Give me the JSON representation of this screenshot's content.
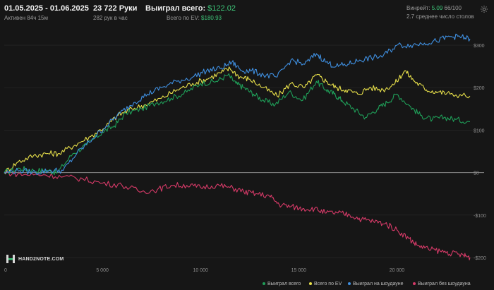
{
  "header": {
    "date_range": "01.05.2025 - 01.06.2025",
    "active_time": "Активен 84ч 15м",
    "hands": "23 722 Руки",
    "hands_per_hour": "282 рук в час",
    "won_total_label": "Выиграл всего:",
    "won_total_value": "$122.02",
    "ev_total_label": "Всего по EV:",
    "ev_total_value": "$180.93",
    "winrate_label": "Винрейт:",
    "winrate_value": "5.09",
    "winrate_count": "66/100",
    "avg_tables": "2.7 среднее число столов"
  },
  "icons": {
    "settings": "gear-icon",
    "logo": "hand2note-logo-icon"
  },
  "logo_text": "HAND2NOTE.COM",
  "legend": [
    {
      "label": "Выиграл всего",
      "color": "#1f9e58"
    },
    {
      "label": "Всего по EV",
      "color": "#e8e04a"
    },
    {
      "label": "Выиграл на шоудауне",
      "color": "#3f8fe0"
    },
    {
      "label": "Выиграл без шоудауна",
      "color": "#d63a68"
    }
  ],
  "chart_data": {
    "type": "line",
    "x_ticks": [
      0,
      5000,
      10000,
      15000,
      20000
    ],
    "x_tick_labels": [
      "0",
      "5 000",
      "10 000",
      "15 000",
      "20 000"
    ],
    "y_ticks": [
      -200,
      -100,
      0,
      100,
      200,
      300
    ],
    "y_tick_labels": [
      "-$200",
      "-$100",
      "$0",
      "$100",
      "$200",
      "$300"
    ],
    "xlim": [
      0,
      23722
    ],
    "ylim": [
      -225,
      340
    ],
    "series": [
      {
        "name": "Выиграл всего",
        "color": "#1f9e58",
        "x": [
          0,
          800,
          1500,
          2200,
          2700,
          3500,
          4200,
          5000,
          5600,
          6200,
          7000,
          7800,
          8500,
          9300,
          10000,
          10800,
          11400,
          11800,
          12200,
          12700,
          13200,
          13800,
          14500,
          15200,
          15900,
          16400,
          16800,
          17200,
          17800,
          18400,
          19000,
          19500,
          20000,
          20700,
          21200,
          21800,
          22400,
          23000,
          23722
        ],
        "y": [
          0,
          10,
          5,
          5,
          0,
          45,
          65,
          95,
          110,
          140,
          150,
          165,
          175,
          190,
          210,
          215,
          230,
          210,
          200,
          185,
          170,
          160,
          190,
          170,
          215,
          195,
          185,
          170,
          150,
          130,
          150,
          165,
          185,
          155,
          135,
          125,
          130,
          125,
          120
        ]
      },
      {
        "name": "Всего по EV",
        "color": "#e8e04a",
        "x": [
          0,
          700,
          1500,
          2200,
          2800,
          3600,
          4400,
          5200,
          5800,
          6500,
          7200,
          8000,
          8800,
          9600,
          10300,
          11000,
          11500,
          12000,
          12500,
          13200,
          13900,
          14600,
          15300,
          15900,
          16400,
          16900,
          17400,
          18000,
          18600,
          19300,
          19900,
          20400,
          20900,
          21500,
          22100,
          22700,
          23722
        ],
        "y": [
          0,
          25,
          40,
          45,
          45,
          65,
          85,
          110,
          135,
          150,
          160,
          175,
          195,
          210,
          220,
          235,
          245,
          225,
          220,
          200,
          180,
          210,
          200,
          230,
          215,
          200,
          195,
          185,
          200,
          195,
          210,
          240,
          215,
          195,
          190,
          185,
          180
        ]
      },
      {
        "name": "Выиграл на шоудауне",
        "color": "#3f8fe0",
        "x": [
          0,
          800,
          1600,
          2300,
          3000,
          3700,
          4500,
          5200,
          5900,
          6600,
          7300,
          8000,
          8800,
          9600,
          10300,
          11000,
          11600,
          12100,
          12600,
          13200,
          13900,
          14600,
          15300,
          15900,
          16400,
          16900,
          17500,
          18100,
          18700,
          19300,
          20000,
          20700,
          21400,
          22000,
          22700,
          23200,
          23722
        ],
        "y": [
          0,
          5,
          0,
          5,
          5,
          45,
          80,
          110,
          140,
          165,
          185,
          200,
          215,
          225,
          240,
          245,
          260,
          240,
          240,
          230,
          225,
          265,
          255,
          280,
          260,
          250,
          255,
          265,
          270,
          275,
          300,
          300,
          305,
          310,
          320,
          320,
          315
        ]
      },
      {
        "name": "Выиграл без шоудауна",
        "color": "#d63a68",
        "x": [
          0,
          1000,
          2000,
          3000,
          4000,
          5000,
          6000,
          7000,
          7800,
          8500,
          9300,
          10000,
          10800,
          11500,
          12200,
          12800,
          13500,
          14000,
          14600,
          15200,
          15800,
          16400,
          17000,
          17600,
          18200,
          18800,
          19400,
          20000,
          20600,
          21000,
          21600,
          22200,
          22800,
          23400,
          23722
        ],
        "y": [
          0,
          -5,
          -5,
          -10,
          -15,
          -25,
          -30,
          -45,
          -40,
          -30,
          -30,
          -35,
          -30,
          -35,
          -45,
          -50,
          -55,
          -75,
          -80,
          -85,
          -85,
          -95,
          -95,
          -100,
          -110,
          -115,
          -120,
          -135,
          -155,
          -170,
          -180,
          -185,
          -190,
          -195,
          -200
        ]
      }
    ]
  }
}
